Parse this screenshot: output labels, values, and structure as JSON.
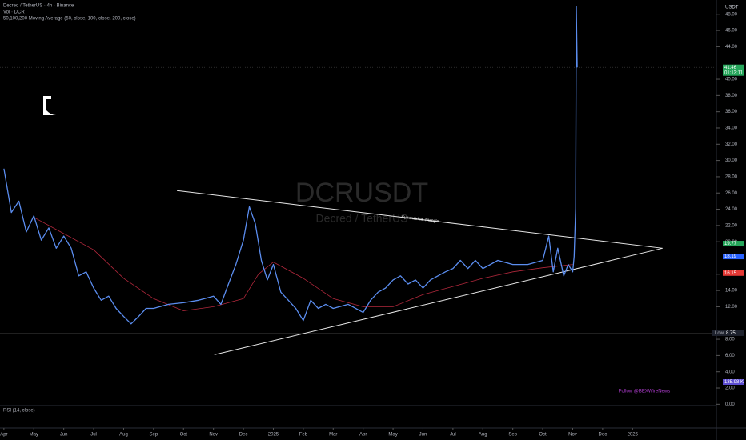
{
  "header": {
    "symbol_line": "Decred / TetherUS · 4h · Binance",
    "volume_line": "Vol · DCR",
    "ma_line": "50,100,200 Moving Average (50, close, 100, close, 200, close)",
    "currency": "USDT",
    "oscillator_line": "RSI (14, close)"
  },
  "chart_data": {
    "type": "line",
    "watermark": "DCRUSDT",
    "watermark_sub": "Decred / TetherUS",
    "annotation": "Symmetrical Triangle",
    "footer_note": "Follow @BEXWireNews",
    "xlim": [
      -0.13,
      23.8
    ],
    "ylim": [
      -4.2,
      49.75
    ],
    "xticks": [
      {
        "value": 0,
        "label": "Apr"
      },
      {
        "value": 1,
        "label": "May"
      },
      {
        "value": 2,
        "label": "Jun"
      },
      {
        "value": 3,
        "label": "Jul"
      },
      {
        "value": 4,
        "label": "Aug"
      },
      {
        "value": 5,
        "label": "Sep"
      },
      {
        "value": 6,
        "label": "Oct"
      },
      {
        "value": 7,
        "label": "Nov"
      },
      {
        "value": 8,
        "label": "Dec"
      },
      {
        "value": 9,
        "label": "2025"
      },
      {
        "value": 10,
        "label": "Feb"
      },
      {
        "value": 11,
        "label": "Mar"
      },
      {
        "value": 12,
        "label": "Apr"
      },
      {
        "value": 13,
        "label": "May"
      },
      {
        "value": 14,
        "label": "Jun"
      },
      {
        "value": 15,
        "label": "Jul"
      },
      {
        "value": 16,
        "label": "Aug"
      },
      {
        "value": 17,
        "label": "Sep"
      },
      {
        "value": 18,
        "label": "Oct"
      },
      {
        "value": 19,
        "label": "Nov"
      },
      {
        "value": 20,
        "label": "Dec"
      },
      {
        "value": 21,
        "label": "2026"
      }
    ],
    "yticks": [
      {
        "value": 0,
        "label": "0.00"
      },
      {
        "value": 2,
        "label": "2.00"
      },
      {
        "value": 4,
        "label": "4.00"
      },
      {
        "value": 6,
        "label": "6.00"
      },
      {
        "value": 8,
        "label": "8.00"
      },
      {
        "value": 12,
        "label": "12.00"
      },
      {
        "value": 14,
        "label": "14.00"
      },
      {
        "value": 16,
        "label": "16.00"
      },
      {
        "value": 18,
        "label": "18.00"
      },
      {
        "value": 20,
        "label": "20.00"
      },
      {
        "value": 22,
        "label": "22.00"
      },
      {
        "value": 24,
        "label": "24.00"
      },
      {
        "value": 26,
        "label": "26.00"
      },
      {
        "value": 28,
        "label": "28.00"
      },
      {
        "value": 30,
        "label": "30.00"
      },
      {
        "value": 32,
        "label": "32.00"
      },
      {
        "value": 34,
        "label": "34.00"
      },
      {
        "value": 36,
        "label": "36.00"
      },
      {
        "value": 38,
        "label": "38.00"
      },
      {
        "value": 40,
        "label": "40.00"
      },
      {
        "value": 44,
        "label": "44.00"
      },
      {
        "value": 46,
        "label": "46.00"
      },
      {
        "value": 48,
        "label": "48.00"
      }
    ],
    "series": [
      {
        "name": "DCRUSDT",
        "color": "#5b8def",
        "width": 1.3,
        "x": [
          0,
          0.25,
          0.5,
          0.75,
          1,
          1.25,
          1.5,
          1.75,
          2,
          2.25,
          2.5,
          2.75,
          3,
          3.25,
          3.5,
          3.75,
          4,
          4.25,
          4.5,
          4.75,
          5,
          5.5,
          6,
          6.5,
          7,
          7.25,
          7.5,
          7.75,
          8,
          8.2,
          8.4,
          8.6,
          8.8,
          9,
          9.25,
          9.5,
          9.75,
          10,
          10.25,
          10.5,
          10.75,
          11,
          11.5,
          12,
          12.25,
          12.5,
          12.75,
          13,
          13.25,
          13.5,
          13.75,
          14,
          14.25,
          14.5,
          14.75,
          15,
          15.25,
          15.5,
          15.75,
          16,
          16.5,
          17,
          17.5,
          18,
          18.2,
          18.35,
          18.5,
          18.7,
          18.85,
          19,
          19.05,
          19.1,
          19.12,
          19.15
        ],
        "values": [
          29,
          23.6,
          25,
          21.2,
          23.2,
          20.2,
          21.7,
          19.2,
          20.7,
          19.2,
          15.8,
          16.3,
          14.3,
          12.8,
          13.3,
          11.8,
          10.8,
          9.9,
          10.8,
          11.8,
          11.8,
          12.3,
          12.5,
          12.8,
          13.3,
          12.3,
          14.8,
          17.2,
          20.2,
          24.3,
          22.2,
          17.7,
          15.3,
          17.2,
          13.8,
          12.8,
          11.8,
          10.3,
          12.8,
          11.8,
          12.3,
          11.8,
          12.3,
          11.3,
          12.8,
          13.8,
          14.3,
          15.3,
          15.8,
          14.8,
          15.3,
          14.3,
          15.3,
          15.8,
          16.3,
          16.7,
          17.7,
          16.7,
          17.7,
          16.7,
          17.7,
          17.2,
          17.2,
          17.7,
          20.7,
          16.3,
          19.2,
          15.8,
          17.2,
          16.3,
          18.2,
          24.1,
          49,
          41.46
        ]
      },
      {
        "name": "MA",
        "color": "#b2283c",
        "width": 0.8,
        "x": [
          1,
          2,
          3,
          4,
          5,
          6,
          7,
          8,
          8.5,
          9,
          10,
          11,
          12,
          13,
          14,
          15,
          16,
          17,
          18,
          19
        ],
        "values": [
          23,
          21,
          19,
          15.5,
          13,
          11.5,
          12,
          13,
          16,
          17.5,
          15.5,
          13,
          12,
          12,
          13.5,
          14.5,
          15.5,
          16.3,
          16.8,
          17.2
        ]
      }
    ],
    "trendlines": [
      {
        "x": [
          5.78,
          22.0
        ],
        "y": [
          26.3,
          19.2
        ]
      },
      {
        "x": [
          7.03,
          22.0
        ],
        "y": [
          6.1,
          19.2
        ]
      }
    ],
    "price_tags": [
      {
        "value": 41.46,
        "color": "#26a65b",
        "sub": "01:13:11"
      },
      {
        "value": 19.77,
        "color": "#26a65b"
      },
      {
        "value": 18.19,
        "color": "#2962ff"
      },
      {
        "value": 16.15,
        "color": "#e53935"
      }
    ],
    "low_tag": {
      "name": "Low",
      "value": 8.75
    },
    "volume_tag": "135.98 K"
  }
}
